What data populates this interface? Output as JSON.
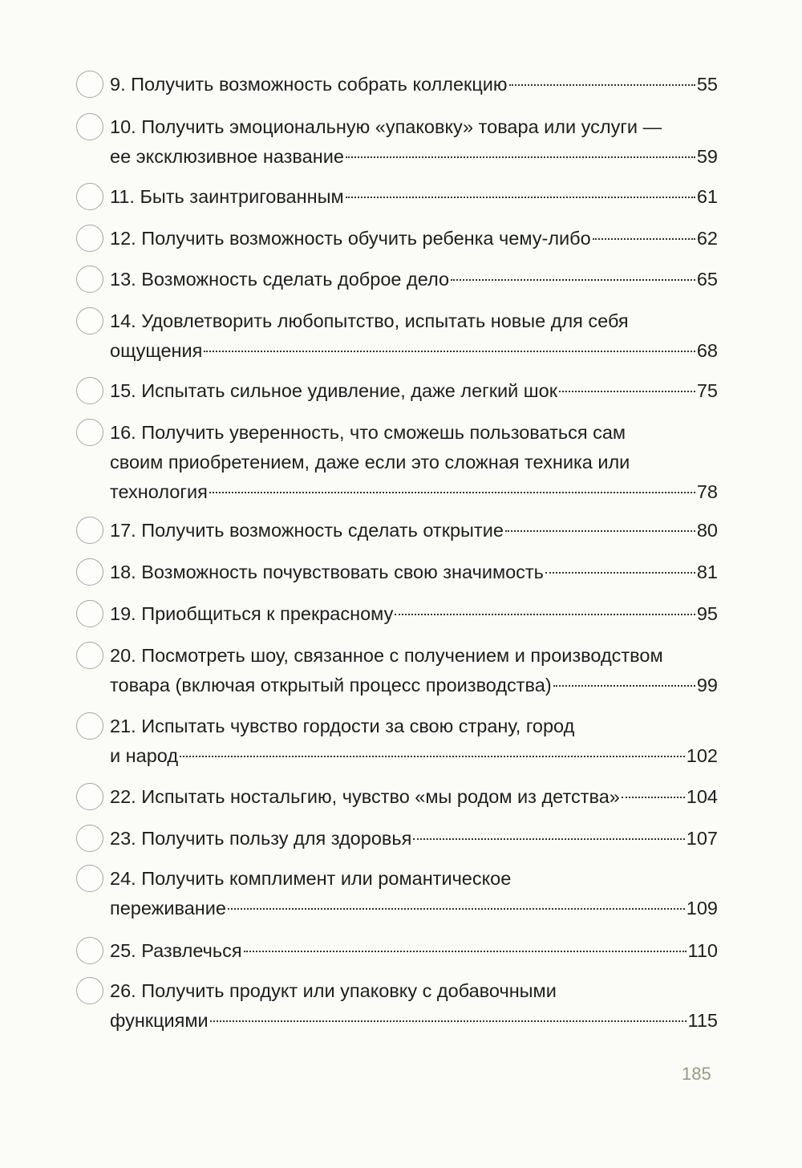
{
  "entries": [
    {
      "lines": [
        "9. Получить возможность собрать коллекцию"
      ],
      "page": "55"
    },
    {
      "lines": [
        "10. Получить эмоциональную «упаковку» товара или услуги —",
        "ее эксклюзивное название"
      ],
      "page": "59"
    },
    {
      "lines": [
        "11. Быть заинтригованным"
      ],
      "page": "61"
    },
    {
      "lines": [
        "12. Получить возможность обучить ребенка чему-либо"
      ],
      "page": "62"
    },
    {
      "lines": [
        "13. Возможность сделать доброе дело"
      ],
      "page": "65"
    },
    {
      "lines": [
        "14. Удовлетворить любопытство, испытать новые для себя",
        "ощущения"
      ],
      "page": "68"
    },
    {
      "lines": [
        "15. Испытать сильное удивление, даже легкий шок"
      ],
      "page": "75"
    },
    {
      "lines": [
        "16. Получить уверенность, что сможешь пользоваться сам",
        "своим приобретением, даже если это сложная техника или",
        "технология"
      ],
      "page": "78"
    },
    {
      "lines": [
        "17. Получить возможность сделать открытие"
      ],
      "page": "80"
    },
    {
      "lines": [
        "18. Возможность почувствовать свою значимость"
      ],
      "page": "81"
    },
    {
      "lines": [
        "19. Приобщиться к прекрасному"
      ],
      "page": "95"
    },
    {
      "lines": [
        "20. Посмотреть шоу, связанное с получением и производством",
        "товара (включая открытый процесс производства)"
      ],
      "page": "99"
    },
    {
      "lines": [
        "21. Испытать чувство гордости за свою страну, город",
        "и народ"
      ],
      "page": "102"
    },
    {
      "lines": [
        "22. Испытать ностальгию, чувство «мы родом из детства»"
      ],
      "page": "104"
    },
    {
      "lines": [
        "23. Получить пользу для здоровья"
      ],
      "page": "107"
    },
    {
      "lines": [
        "24.  Получить комплимент или романтическое",
        "переживание"
      ],
      "page": "109"
    },
    {
      "lines": [
        "25. Развлечься"
      ],
      "page": "110"
    },
    {
      "lines": [
        "26. Получить продукт или упаковку с добавочными",
        "функциями"
      ],
      "page": "115"
    }
  ],
  "page_number": "185"
}
